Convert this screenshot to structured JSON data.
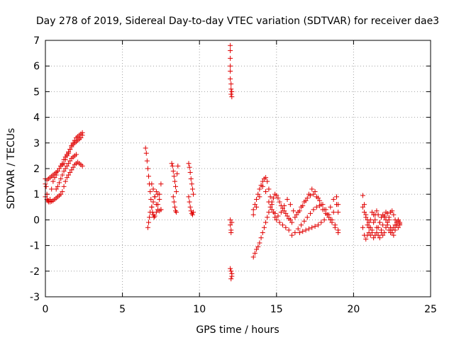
{
  "chart_data": {
    "type": "scatter",
    "title": "Day 278 of 2019, Sidereal Day-to-day VTEC variation (SDTVAR) for receiver dae3",
    "xlabel": "GPS time / hours",
    "ylabel": "SDTVAR / TECUs",
    "xlim": [
      0,
      25
    ],
    "ylim": [
      -3,
      7
    ],
    "xticks": [
      "0",
      "5",
      "10",
      "15",
      "20",
      "25"
    ],
    "yticks": [
      "-3",
      "-2",
      "-1",
      "0",
      "1",
      "2",
      "3",
      "4",
      "5",
      "6",
      "7"
    ],
    "grid": true,
    "marker": "+",
    "color": "#e00000",
    "series": [
      {
        "name": "SDTVAR",
        "segments": [
          {
            "x": [
              0.0,
              0.05,
              0.1,
              0.15,
              0.2,
              0.3,
              0.4,
              0.5,
              0.6,
              0.7,
              0.8,
              0.9,
              1.0,
              1.1,
              1.2,
              1.3,
              1.4,
              1.5,
              1.6,
              1.7,
              1.8,
              1.9,
              2.0,
              2.1,
              2.2,
              2.3,
              2.4
            ],
            "y": [
              1.6,
              1.3,
              1.0,
              0.75,
              0.7,
              0.8,
              1.2,
              1.5,
              1.65,
              1.75,
              1.9,
              2.0,
              2.1,
              2.15,
              2.2,
              2.35,
              2.5,
              2.6,
              2.75,
              2.9,
              3.0,
              3.1,
              3.2,
              3.25,
              3.3,
              3.35,
              3.4
            ]
          },
          {
            "x": [
              0.0,
              0.1,
              0.2,
              0.3,
              0.4,
              0.5,
              0.6,
              0.7,
              0.8,
              0.9,
              1.0,
              1.1,
              1.2,
              1.3,
              1.4,
              1.5,
              1.6,
              1.7,
              1.8,
              1.9,
              2.0,
              2.1,
              2.2,
              2.3,
              2.4
            ],
            "y": [
              1.4,
              1.55,
              1.6,
              1.65,
              1.7,
              1.75,
              1.8,
              1.85,
              1.9,
              2.0,
              2.1,
              2.2,
              2.35,
              2.45,
              2.55,
              2.65,
              2.75,
              2.85,
              2.95,
              3.0,
              3.05,
              3.1,
              3.15,
              3.2,
              3.3
            ]
          },
          {
            "x": [
              0.0,
              0.1,
              0.2,
              0.3,
              0.4,
              0.5,
              0.6,
              0.7,
              0.8,
              0.9,
              1.0,
              1.1,
              1.2,
              1.3,
              1.4,
              1.5,
              1.6,
              1.7,
              1.8,
              1.9,
              2.0,
              2.1,
              2.2,
              2.3,
              2.4
            ],
            "y": [
              0.9,
              0.8,
              0.75,
              0.7,
              0.72,
              0.75,
              0.8,
              0.85,
              0.9,
              0.95,
              1.0,
              1.1,
              1.3,
              1.5,
              1.65,
              1.75,
              1.85,
              1.95,
              2.05,
              2.15,
              2.2,
              2.25,
              2.2,
              2.15,
              2.1
            ]
          },
          {
            "x": [
              0.7,
              0.8,
              0.9,
              1.0,
              1.1,
              1.2,
              1.3,
              1.4,
              1.5,
              1.6,
              1.7,
              1.8,
              1.9,
              2.0
            ],
            "y": [
              1.2,
              1.3,
              1.45,
              1.6,
              1.75,
              1.9,
              2.0,
              2.1,
              2.2,
              2.3,
              2.4,
              2.45,
              2.5,
              2.55
            ]
          },
          {
            "x": [
              6.5,
              6.55,
              6.6,
              6.65,
              6.7,
              6.75,
              6.8,
              6.85,
              6.9,
              6.95,
              7.0,
              7.05,
              7.1,
              7.2,
              7.3,
              7.4,
              7.5
            ],
            "y": [
              2.8,
              2.6,
              2.3,
              2.0,
              1.7,
              1.4,
              1.1,
              0.8,
              0.5,
              0.3,
              0.2,
              0.1,
              0.15,
              0.3,
              0.6,
              1.0,
              1.4
            ]
          },
          {
            "x": [
              6.65,
              6.7,
              6.75,
              6.8,
              6.9,
              7.0,
              7.1,
              7.2,
              7.3,
              7.4,
              7.5
            ],
            "y": [
              -0.3,
              -0.1,
              0.1,
              0.3,
              0.5,
              0.7,
              0.9,
              1.1,
              1.0,
              0.8,
              0.4
            ]
          },
          {
            "x": [
              6.9,
              7.0,
              7.1,
              7.2,
              7.3,
              7.4,
              7.5
            ],
            "y": [
              1.4,
              1.2,
              0.9,
              0.6,
              0.4,
              0.35,
              0.4
            ]
          },
          {
            "x": [
              8.2,
              8.25,
              8.3,
              8.35,
              8.4,
              8.45,
              8.5,
              8.55,
              8.6,
              8.3,
              8.35,
              8.4,
              8.45,
              8.5
            ],
            "y": [
              2.2,
              2.1,
              1.9,
              1.7,
              1.5,
              1.3,
              1.1,
              1.8,
              2.1,
              0.9,
              0.7,
              0.5,
              0.35,
              0.3
            ]
          },
          {
            "x": [
              9.3,
              9.35,
              9.4,
              9.45,
              9.5,
              9.55,
              9.6,
              9.3,
              9.35,
              9.4,
              9.45,
              9.5,
              9.55,
              9.6
            ],
            "y": [
              2.2,
              2.05,
              1.85,
              1.6,
              1.4,
              1.2,
              1.0,
              0.9,
              0.7,
              0.5,
              0.35,
              0.25,
              0.2,
              0.3
            ]
          },
          {
            "x": [
              12.0,
              12.0,
              12.0,
              12.0,
              12.0,
              12.0,
              12.05,
              12.05,
              12.05,
              12.1,
              12.1
            ],
            "y": [
              6.8,
              6.6,
              6.3,
              6.0,
              5.8,
              5.5,
              5.3,
              5.1,
              4.9,
              4.8,
              5.0
            ]
          },
          {
            "x": [
              12.0,
              12.0,
              12.05,
              12.05,
              12.1,
              12.0,
              12.05,
              12.1,
              12.1,
              12.05
            ],
            "y": [
              0.0,
              -0.2,
              -0.4,
              -0.5,
              -0.1,
              -1.9,
              -2.0,
              -2.1,
              -2.2,
              -2.3
            ]
          },
          {
            "x": [
              13.5,
              13.6,
              13.7,
              13.8,
              13.9,
              14.0,
              14.1,
              14.2,
              14.3,
              14.4,
              14.5,
              14.6,
              14.7,
              14.8,
              14.9,
              15.0,
              15.1,
              15.2,
              15.3,
              15.4,
              15.5,
              15.6,
              15.7,
              15.8,
              15.9,
              16.0,
              16.2,
              16.4,
              16.6,
              16.8,
              17.0,
              17.2,
              17.4,
              17.6,
              17.8,
              18.0,
              18.2,
              18.4,
              18.6,
              18.8,
              19.0
            ],
            "y": [
              -1.45,
              -1.3,
              -1.15,
              -1.05,
              -0.9,
              -0.7,
              -0.5,
              -0.3,
              -0.1,
              0.1,
              0.3,
              0.5,
              0.7,
              0.85,
              1.0,
              0.95,
              0.85,
              0.7,
              0.55,
              0.45,
              0.35,
              0.25,
              0.15,
              0.05,
              0.0,
              -0.1,
              0.1,
              0.3,
              0.5,
              0.7,
              0.85,
              0.95,
              1.0,
              0.9,
              0.75,
              0.6,
              0.4,
              0.2,
              0.0,
              -0.2,
              -0.4
            ]
          },
          {
            "x": [
              13.5,
              13.6,
              13.7,
              13.8,
              13.9,
              14.0,
              14.1,
              14.2,
              14.3,
              14.4,
              14.5,
              14.6,
              14.7,
              14.8,
              14.9,
              15.0,
              15.2,
              15.4,
              15.6,
              15.8,
              16.0,
              16.2,
              16.4,
              16.6,
              16.8,
              17.0,
              17.2,
              17.4,
              17.6,
              17.8,
              18.0,
              18.2,
              18.4,
              18.6,
              18.8,
              19.0
            ],
            "y": [
              0.4,
              0.6,
              0.8,
              1.0,
              1.2,
              1.35,
              1.5,
              1.6,
              1.65,
              1.5,
              1.2,
              0.9,
              0.6,
              0.3,
              0.1,
              0.0,
              -0.1,
              -0.2,
              -0.3,
              -0.4,
              -0.6,
              -0.5,
              -0.35,
              -0.2,
              -0.05,
              0.1,
              0.25,
              0.4,
              0.5,
              0.55,
              0.4,
              0.25,
              0.1,
              -0.1,
              -0.3,
              -0.5
            ]
          },
          {
            "x": [
              13.5,
              13.7,
              13.9,
              14.1,
              14.3,
              14.5,
              14.7,
              14.9,
              15.1,
              15.3,
              15.5,
              15.7,
              15.9,
              16.1,
              16.3,
              16.5,
              16.7,
              16.9,
              17.1,
              17.3,
              17.5,
              17.7,
              17.9,
              18.1,
              18.3,
              18.5,
              18.7,
              18.9,
              19.0
            ],
            "y": [
              0.2,
              0.5,
              0.9,
              1.3,
              1.1,
              0.7,
              0.4,
              0.25,
              0.15,
              0.3,
              0.55,
              0.8,
              0.6,
              0.35,
              0.2,
              0.35,
              0.55,
              0.75,
              1.0,
              1.2,
              1.1,
              0.85,
              0.6,
              0.4,
              0.2,
              0.0,
              0.3,
              0.6,
              0.3
            ]
          },
          {
            "x": [
              16.5,
              16.7,
              16.9,
              17.1,
              17.3,
              17.5,
              17.7,
              17.9,
              18.1,
              18.3,
              18.5,
              18.7,
              18.9,
              19.0
            ],
            "y": [
              -0.5,
              -0.45,
              -0.4,
              -0.35,
              -0.3,
              -0.25,
              -0.2,
              -0.1,
              0.0,
              0.2,
              0.5,
              0.8,
              0.9,
              0.6
            ]
          },
          {
            "x": [
              20.6,
              20.7,
              20.8,
              20.9,
              21.0,
              21.1,
              21.2,
              21.3,
              21.4,
              21.5,
              21.6,
              21.7,
              21.8,
              21.9,
              22.0,
              22.1,
              22.2,
              22.3,
              22.4,
              22.5,
              22.6,
              22.7,
              22.8,
              22.9,
              23.0
            ],
            "y": [
              0.95,
              0.6,
              0.2,
              -0.2,
              -0.5,
              -0.6,
              -0.4,
              -0.1,
              0.2,
              0.35,
              0.2,
              -0.1,
              -0.4,
              -0.6,
              -0.5,
              -0.3,
              -0.1,
              0.1,
              0.3,
              0.35,
              0.2,
              0.0,
              -0.2,
              -0.3,
              -0.1
            ]
          },
          {
            "x": [
              20.6,
              20.7,
              20.8,
              20.9,
              21.0,
              21.1,
              21.2,
              21.3,
              21.4,
              21.5,
              21.6,
              21.7,
              21.8,
              21.9,
              22.0,
              22.1,
              22.2,
              22.3,
              22.4,
              22.5,
              22.6,
              22.7,
              22.8,
              22.9,
              23.0
            ],
            "y": [
              0.5,
              0.3,
              0.1,
              0.0,
              -0.1,
              -0.3,
              -0.5,
              -0.7,
              -0.6,
              -0.5,
              -0.3,
              -0.1,
              0.1,
              0.2,
              0.15,
              0.0,
              -0.2,
              -0.4,
              -0.5,
              -0.4,
              -0.3,
              -0.2,
              -0.1,
              -0.05,
              -0.15
            ]
          },
          {
            "x": [
              20.6,
              20.7,
              20.8,
              20.9,
              21.0,
              21.1,
              21.2,
              21.3,
              21.4,
              21.5,
              21.6,
              21.7,
              21.8,
              21.9,
              22.0,
              22.1,
              22.2,
              22.3,
              22.4,
              22.5,
              22.6,
              22.7,
              22.8,
              22.9,
              23.0
            ],
            "y": [
              -0.3,
              -0.6,
              -0.75,
              -0.6,
              -0.3,
              0.0,
              0.3,
              0.2,
              0.0,
              -0.3,
              -0.6,
              -0.7,
              -0.5,
              -0.2,
              0.1,
              0.3,
              0.25,
              0.0,
              -0.3,
              -0.5,
              -0.6,
              -0.4,
              -0.2,
              0.0,
              -0.2
            ]
          }
        ]
      }
    ]
  }
}
